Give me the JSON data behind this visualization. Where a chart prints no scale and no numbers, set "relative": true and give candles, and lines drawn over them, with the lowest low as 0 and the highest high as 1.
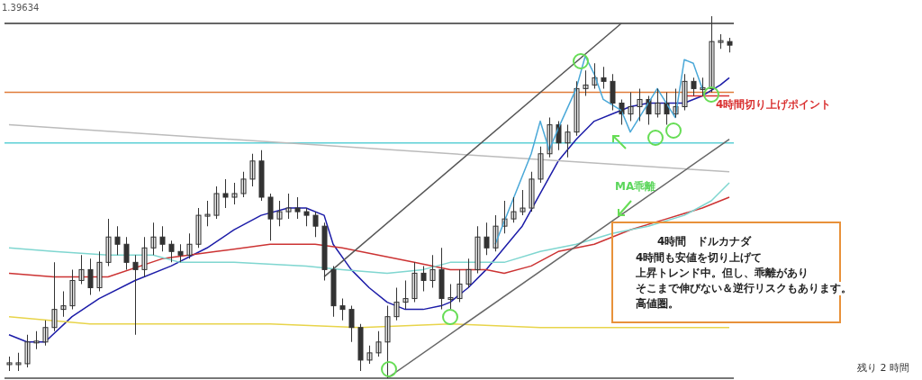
{
  "chart_data": {
    "type": "candlestick",
    "relative": true,
    "legend": false,
    "grid": false,
    "categories": [
      null,
      null,
      null,
      null,
      null,
      null,
      null,
      null,
      null,
      null,
      null,
      null,
      null,
      null,
      null,
      null,
      null,
      null,
      null,
      null,
      null,
      null,
      null,
      null,
      null,
      null,
      null,
      null,
      null,
      null,
      null,
      null,
      null,
      null,
      null,
      null,
      null,
      null,
      null,
      null,
      null,
      null,
      null,
      null,
      null,
      null,
      null,
      null,
      null,
      null,
      null,
      null,
      null,
      null,
      null,
      null,
      null,
      null,
      null,
      null,
      null,
      null,
      null,
      null,
      null,
      null,
      null,
      null,
      null,
      null,
      null,
      null,
      null,
      null,
      null,
      null,
      null,
      null,
      null,
      null,
      null
    ],
    "ohlc": [
      [
        0.04,
        0.06,
        0.02,
        0.04
      ],
      [
        0.04,
        0.07,
        0.02,
        0.04
      ],
      [
        0.04,
        0.12,
        0.03,
        0.1
      ],
      [
        0.1,
        0.13,
        0.08,
        0.1
      ],
      [
        0.1,
        0.16,
        0.09,
        0.14
      ],
      [
        0.14,
        0.32,
        0.13,
        0.19
      ],
      [
        0.19,
        0.24,
        0.17,
        0.2
      ],
      [
        0.2,
        0.3,
        0.19,
        0.27
      ],
      [
        0.27,
        0.34,
        0.26,
        0.3
      ],
      [
        0.3,
        0.33,
        0.23,
        0.25
      ],
      [
        0.25,
        0.35,
        0.24,
        0.32
      ],
      [
        0.32,
        0.44,
        0.31,
        0.39
      ],
      [
        0.39,
        0.42,
        0.34,
        0.37
      ],
      [
        0.37,
        0.39,
        0.3,
        0.32
      ],
      [
        0.32,
        0.34,
        0.12,
        0.3
      ],
      [
        0.3,
        0.39,
        0.28,
        0.36
      ],
      [
        0.36,
        0.43,
        0.34,
        0.39
      ],
      [
        0.39,
        0.42,
        0.35,
        0.37
      ],
      [
        0.37,
        0.38,
        0.32,
        0.35
      ],
      [
        0.35,
        0.37,
        0.32,
        0.34
      ],
      [
        0.34,
        0.4,
        0.33,
        0.37
      ],
      [
        0.37,
        0.47,
        0.36,
        0.45
      ],
      [
        0.45,
        0.49,
        0.42,
        0.45
      ],
      [
        0.45,
        0.53,
        0.44,
        0.51
      ],
      [
        0.51,
        0.55,
        0.47,
        0.5
      ],
      [
        0.5,
        0.54,
        0.48,
        0.51
      ],
      [
        0.51,
        0.57,
        0.5,
        0.55
      ],
      [
        0.55,
        0.62,
        0.53,
        0.6
      ],
      [
        0.6,
        0.63,
        0.49,
        0.5
      ],
      [
        0.5,
        0.51,
        0.38,
        0.44
      ],
      [
        0.44,
        0.49,
        0.42,
        0.46
      ],
      [
        0.46,
        0.51,
        0.44,
        0.47
      ],
      [
        0.47,
        0.5,
        0.44,
        0.46
      ],
      [
        0.46,
        0.47,
        0.42,
        0.45
      ],
      [
        0.45,
        0.46,
        0.39,
        0.42
      ],
      [
        0.42,
        0.43,
        0.27,
        0.3
      ],
      [
        0.3,
        0.31,
        0.17,
        0.2
      ],
      [
        0.2,
        0.22,
        0.16,
        0.19
      ],
      [
        0.19,
        0.2,
        0.1,
        0.14
      ],
      [
        0.14,
        0.15,
        0.02,
        0.05
      ],
      [
        0.05,
        0.09,
        0.04,
        0.07
      ],
      [
        0.07,
        0.13,
        0.06,
        0.1
      ],
      [
        0.1,
        0.2,
        0.0,
        0.17
      ],
      [
        0.17,
        0.25,
        0.16,
        0.21
      ],
      [
        0.21,
        0.27,
        0.19,
        0.22
      ],
      [
        0.22,
        0.32,
        0.21,
        0.29
      ],
      [
        0.29,
        0.31,
        0.24,
        0.27
      ],
      [
        0.27,
        0.34,
        0.25,
        0.3
      ],
      [
        0.3,
        0.36,
        0.19,
        0.22
      ],
      [
        0.22,
        0.26,
        0.19,
        0.22
      ],
      [
        0.22,
        0.3,
        0.21,
        0.26
      ],
      [
        0.26,
        0.33,
        0.25,
        0.3
      ],
      [
        0.3,
        0.42,
        0.29,
        0.39
      ],
      [
        0.39,
        0.43,
        0.34,
        0.36
      ],
      [
        0.36,
        0.45,
        0.35,
        0.42
      ],
      [
        0.42,
        0.49,
        0.4,
        0.44
      ],
      [
        0.44,
        0.5,
        0.43,
        0.46
      ],
      [
        0.46,
        0.52,
        0.45,
        0.47
      ],
      [
        0.47,
        0.57,
        0.46,
        0.55
      ],
      [
        0.55,
        0.64,
        0.54,
        0.62
      ],
      [
        0.62,
        0.72,
        0.61,
        0.7
      ],
      [
        0.7,
        0.71,
        0.63,
        0.65
      ],
      [
        0.65,
        0.7,
        0.61,
        0.68
      ],
      [
        0.68,
        0.82,
        0.67,
        0.8
      ],
      [
        0.8,
        0.85,
        0.78,
        0.81
      ],
      [
        0.81,
        0.87,
        0.8,
        0.83
      ],
      [
        0.83,
        0.86,
        0.8,
        0.82
      ],
      [
        0.82,
        0.84,
        0.74,
        0.76
      ],
      [
        0.76,
        0.77,
        0.7,
        0.73
      ],
      [
        0.73,
        0.79,
        0.71,
        0.75
      ],
      [
        0.75,
        0.8,
        0.71,
        0.77
      ],
      [
        0.77,
        0.78,
        0.7,
        0.73
      ],
      [
        0.73,
        0.8,
        0.72,
        0.76
      ],
      [
        0.76,
        0.79,
        0.7,
        0.73
      ],
      [
        0.73,
        0.8,
        0.72,
        0.75
      ],
      [
        0.75,
        0.84,
        0.74,
        0.82
      ],
      [
        0.82,
        0.83,
        0.78,
        0.8
      ],
      [
        0.8,
        0.83,
        0.78,
        0.8
      ],
      [
        0.8,
        1.0,
        0.79,
        0.93
      ],
      [
        0.93,
        0.95,
        0.91,
        0.93
      ],
      [
        0.93,
        0.94,
        0.9,
        0.92
      ]
    ],
    "color": "#333333",
    "series": [
      {
        "type": "line",
        "color": "#1c1ca8",
        "values": [
          0.12,
          null,
          0.1,
          null,
          0.1,
          null,
          null,
          0.17,
          null,
          null,
          0.22,
          null,
          null,
          null,
          0.27,
          null,
          null,
          null,
          0.31,
          null,
          null,
          null,
          0.36,
          null,
          null,
          0.41,
          null,
          null,
          0.45,
          null,
          null,
          0.47,
          null,
          0.47,
          null,
          0.45,
          0.37,
          null,
          0.3,
          null,
          0.25,
          null,
          0.21,
          null,
          0.19,
          null,
          0.19,
          null,
          0.2,
          0.21,
          null,
          0.25,
          null,
          0.3,
          null,
          0.36,
          null,
          0.42,
          null,
          0.51,
          null,
          0.6,
          null,
          0.66,
          null,
          0.71,
          null,
          0.73,
          null,
          0.75,
          null,
          0.76,
          null,
          0.76,
          null,
          0.76,
          null,
          0.78,
          null,
          0.81,
          0.83
        ]
      },
      {
        "type": "line",
        "color": "#cc3333",
        "values": [
          0.29,
          null,
          null,
          null,
          null,
          0.28,
          null,
          null,
          null,
          null,
          null,
          0.28,
          null,
          null,
          null,
          null,
          null,
          0.33,
          null,
          null,
          null,
          null,
          null,
          0.35,
          null,
          null,
          null,
          null,
          null,
          0.37,
          null,
          null,
          null,
          null,
          0.37,
          null,
          null,
          0.36,
          null,
          null,
          null,
          0.34,
          null,
          null,
          null,
          0.32,
          null,
          null,
          null,
          0.3,
          null,
          null,
          null,
          0.3,
          null,
          0.29,
          null,
          null,
          0.31,
          null,
          null,
          0.35,
          null,
          null,
          null,
          0.37,
          null,
          null,
          null,
          0.41,
          null,
          null,
          null,
          0.44,
          null,
          null,
          null,
          0.47,
          null,
          null,
          0.5
        ]
      },
      {
        "type": "line",
        "color": "#7fd6d0",
        "values": [
          0.36,
          null,
          null,
          null,
          null,
          0.35,
          null,
          null,
          null,
          null,
          null,
          0.34,
          null,
          null,
          null,
          null,
          0.34,
          null,
          null,
          0.32,
          null,
          null,
          null,
          null,
          null,
          0.32,
          null,
          null,
          null,
          null,
          null,
          null,
          null,
          0.31,
          null,
          null,
          null,
          0.3,
          null,
          null,
          null,
          null,
          0.29,
          null,
          null,
          null,
          0.3,
          null,
          null,
          0.32,
          null,
          null,
          null,
          0.32,
          null,
          0.32,
          null,
          null,
          null,
          0.35,
          null,
          null,
          null,
          0.37,
          null,
          null,
          null,
          0.4,
          null,
          null,
          null,
          0.42,
          null,
          null,
          null,
          0.45,
          null,
          null,
          0.49,
          null,
          0.54
        ]
      },
      {
        "type": "line",
        "color": "#e8d44a",
        "values": [
          0.17,
          null,
          null,
          null,
          null,
          null,
          null,
          null,
          null,
          0.15,
          null,
          null,
          null,
          null,
          null,
          null,
          null,
          null,
          null,
          0.15,
          null,
          null,
          null,
          null,
          null,
          null,
          null,
          null,
          null,
          0.15,
          null,
          null,
          null,
          null,
          null,
          null,
          null,
          null,
          null,
          0.14,
          null,
          null,
          null,
          null,
          null,
          null,
          null,
          null,
          null,
          0.15,
          null,
          null,
          null,
          null,
          null,
          null,
          null,
          null,
          null,
          0.14,
          null,
          null,
          null,
          null,
          null,
          null,
          null,
          null,
          null,
          0.14,
          null,
          null,
          null,
          null,
          null,
          null,
          null,
          null,
          null,
          null,
          0.14
        ]
      },
      {
        "type": "line",
        "color": "#bbbbbb",
        "values": [
          0.7,
          null,
          null,
          null,
          null,
          null,
          null,
          null,
          null,
          null,
          null,
          null,
          null,
          null,
          null,
          null,
          null,
          null,
          null,
          null,
          null,
          null,
          null,
          null,
          null,
          null,
          null,
          null,
          null,
          null,
          null,
          null,
          null,
          null,
          null,
          null,
          null,
          null,
          null,
          null,
          null,
          null,
          null,
          null,
          null,
          null,
          null,
          null,
          null,
          null,
          null,
          null,
          null,
          null,
          null,
          null,
          null,
          null,
          null,
          null,
          null,
          null,
          null,
          null,
          null,
          null,
          null,
          null,
          null,
          null,
          null,
          null,
          null,
          null,
          null,
          null,
          null,
          null,
          null,
          null,
          0.57
        ]
      },
      {
        "type": "line",
        "color": "#555555",
        "values": [
          null,
          null,
          null,
          null,
          null,
          null,
          null,
          null,
          null,
          null,
          null,
          null,
          null,
          null,
          null,
          null,
          null,
          null,
          null,
          null,
          null,
          null,
          null,
          null,
          null,
          null,
          null,
          null,
          null,
          null,
          null,
          null,
          null,
          null,
          null,
          0.28,
          null,
          null,
          null,
          null,
          null,
          null,
          null,
          null,
          null,
          null,
          null,
          null,
          null,
          null,
          null,
          null,
          null,
          null,
          null,
          null,
          null,
          null,
          null,
          null,
          null,
          null,
          null,
          null,
          null,
          null,
          null,
          null,
          0.98,
          null,
          null,
          null,
          null,
          null,
          null,
          null,
          null,
          null,
          null,
          null,
          null
        ]
      },
      {
        "type": "line",
        "color": "#666666",
        "values": [
          null,
          null,
          null,
          null,
          null,
          null,
          null,
          null,
          null,
          null,
          null,
          null,
          null,
          null,
          null,
          null,
          null,
          null,
          null,
          null,
          null,
          null,
          null,
          null,
          null,
          null,
          null,
          null,
          null,
          null,
          null,
          null,
          null,
          null,
          null,
          null,
          null,
          null,
          null,
          null,
          null,
          null,
          0.0,
          null,
          null,
          null,
          null,
          null,
          null,
          null,
          null,
          null,
          null,
          null,
          null,
          null,
          null,
          null,
          null,
          null,
          null,
          null,
          null,
          null,
          null,
          null,
          null,
          null,
          null,
          null,
          null,
          null,
          null,
          null,
          null,
          null,
          null,
          null,
          null,
          null,
          0.66
        ]
      },
      {
        "type": "line",
        "color": "#4aa8d8",
        "values": [
          null,
          null,
          null,
          null,
          null,
          null,
          null,
          null,
          null,
          null,
          null,
          null,
          null,
          null,
          null,
          null,
          null,
          null,
          null,
          null,
          null,
          null,
          null,
          null,
          null,
          null,
          null,
          null,
          null,
          null,
          null,
          null,
          null,
          null,
          null,
          null,
          null,
          null,
          null,
          null,
          null,
          null,
          null,
          null,
          null,
          null,
          null,
          null,
          null,
          null,
          null,
          null,
          null,
          null,
          0.37,
          null,
          null,
          null,
          0.62,
          0.71,
          0.63,
          0.69,
          null,
          0.8,
          0.89,
          0.84,
          0.77,
          null,
          0.74,
          0.68,
          null,
          null,
          0.8,
          null,
          0.72,
          0.88,
          0.87,
          0.8,
          null,
          null,
          null
        ]
      },
      {
        "type": "line",
        "color": "#d93030",
        "values": [
          null,
          null,
          null,
          null,
          null,
          null,
          null,
          null,
          null,
          null,
          null,
          null,
          null,
          null,
          null,
          null,
          null,
          null,
          null,
          null,
          null,
          null,
          null,
          null,
          null,
          null,
          null,
          null,
          null,
          null,
          null,
          null,
          null,
          null,
          null,
          null,
          null,
          null,
          null,
          null,
          null,
          null,
          null,
          null,
          null,
          null,
          null,
          null,
          null,
          null,
          null,
          null,
          null,
          null,
          null,
          null,
          null,
          null,
          null,
          null,
          null,
          null,
          null,
          null,
          null,
          null,
          null,
          null,
          null,
          null,
          null,
          null,
          null,
          null,
          null,
          0.78,
          null,
          null,
          null,
          null,
          0.78
        ]
      }
    ],
    "ref_lines": [
      {
        "axis": "y",
        "value": 0.98,
        "color": "#333333"
      },
      {
        "axis": "y",
        "value": 0.79,
        "color": "#e07b39"
      },
      {
        "axis": "y",
        "value": 0.65,
        "color": "#5ccfd6"
      }
    ],
    "annotations": [
      "1.39634",
      "4時間切り上げポイント",
      "MA乖離",
      "4時間　ドルカナダ",
      "4時間も安値を切り上げて",
      "上昇トレンド中。但し、乖離があり",
      "そこまで伸びない＆逆行リスクもあります。",
      "高値圏。",
      "残り 2 時間"
    ]
  }
}
